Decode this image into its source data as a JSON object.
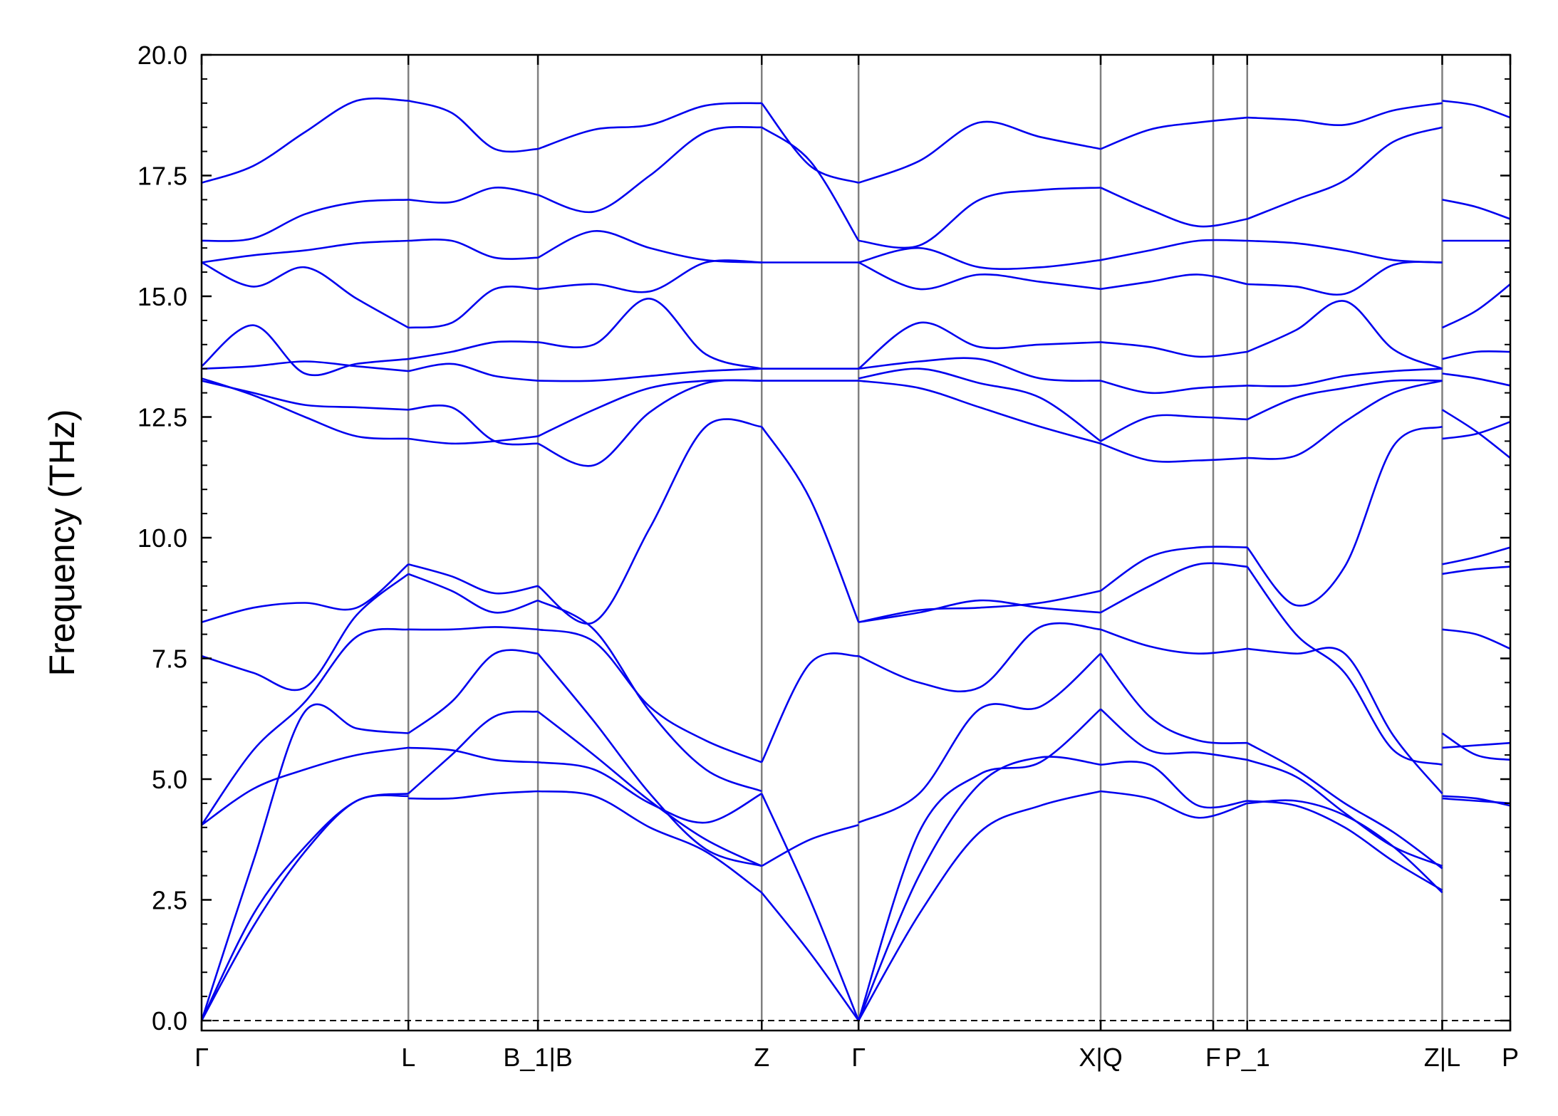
{
  "chart_data": {
    "type": "line",
    "ylabel": "Frequency (THz)",
    "xlabel": "",
    "ylim": [
      0,
      20
    ],
    "y_ticks": [
      "0.0",
      "2.5",
      "5.0",
      "7.5",
      "10.0",
      "12.5",
      "15.0",
      "17.5",
      "20.0"
    ],
    "y_tick_values": [
      0,
      2.5,
      5,
      7.5,
      10,
      12.5,
      15,
      17.5,
      20
    ],
    "q_points": [
      {
        "label": "Γ",
        "x": 0.0
      },
      {
        "label": "L",
        "x": 1.58
      },
      {
        "label": "B_1|B",
        "x": 2.57
      },
      {
        "label": "Z",
        "x": 4.28
      },
      {
        "label": "Γ",
        "x": 5.02
      },
      {
        "label": "X|Q",
        "x": 6.87
      },
      {
        "label": "F",
        "x": 7.73
      },
      {
        "label": "P_1",
        "x": 7.99
      },
      {
        "label": "Z|L",
        "x": 9.48
      },
      {
        "label": "P",
        "x": 10.0
      }
    ],
    "xlim": [
      0,
      10.0
    ],
    "line_color": "#0000ee",
    "vline_color": "#808080",
    "zero_line": {
      "y": 0,
      "style": "dashed"
    },
    "segments": [
      {
        "x_start": 0.0,
        "x_end": 1.58,
        "bands": [
          [
            0,
            1.95,
            3.5,
            4.55,
            4.65
          ],
          [
            0,
            2.2,
            3.6,
            4.55,
            4.7
          ],
          [
            0,
            3.3,
            6.4,
            6.05,
            5.95
          ],
          [
            4.05,
            4.8,
            5.2,
            5.5,
            5.65
          ],
          [
            4.05,
            5.6,
            6.6,
            7.95,
            8.1
          ],
          [
            7.55,
            7.2,
            6.9,
            8.4,
            9.25
          ],
          [
            8.25,
            8.55,
            8.65,
            8.55,
            9.45
          ],
          [
            13.25,
            13.0,
            12.75,
            12.7,
            12.65
          ],
          [
            13.3,
            12.95,
            12.5,
            12.1,
            12.05
          ],
          [
            13.5,
            13.55,
            13.65,
            13.55,
            13.45
          ],
          [
            13.55,
            14.4,
            13.4,
            13.6,
            13.7
          ],
          [
            15.7,
            15.2,
            15.6,
            14.95,
            14.35
          ],
          [
            15.7,
            15.85,
            15.95,
            16.1,
            16.15
          ],
          [
            16.15,
            16.2,
            16.7,
            16.95,
            17.0
          ],
          [
            17.35,
            17.7,
            18.4,
            19.05,
            19.05
          ]
        ]
      },
      {
        "x_start": 1.58,
        "x_end": 2.57,
        "bands": [
          [
            4.6,
            4.6,
            4.7,
            4.75
          ],
          [
            4.7,
            5.5,
            6.3,
            6.4
          ],
          [
            5.95,
            6.6,
            7.6,
            7.6
          ],
          [
            5.65,
            5.6,
            5.4,
            5.35
          ],
          [
            8.1,
            8.1,
            8.15,
            8.1
          ],
          [
            9.25,
            8.9,
            8.45,
            8.7
          ],
          [
            9.45,
            9.2,
            8.85,
            9.0
          ],
          [
            12.65,
            12.7,
            12.0,
            11.95
          ],
          [
            12.05,
            11.95,
            12.0,
            12.1
          ],
          [
            13.45,
            13.6,
            13.35,
            13.25
          ],
          [
            13.7,
            13.85,
            14.05,
            14.05
          ],
          [
            14.35,
            14.45,
            15.15,
            15.15
          ],
          [
            16.15,
            16.15,
            15.8,
            15.8
          ],
          [
            17.0,
            16.95,
            17.25,
            17.1
          ],
          [
            19.05,
            18.8,
            18.05,
            18.05
          ]
        ]
      },
      {
        "x_start": 2.57,
        "x_end": 4.28,
        "bands": [
          [
            4.75,
            4.65,
            4.0,
            3.5,
            2.65
          ],
          [
            6.4,
            5.5,
            4.55,
            3.75,
            3.2
          ],
          [
            7.6,
            6.2,
            4.7,
            3.55,
            3.2
          ],
          [
            5.35,
            5.2,
            4.5,
            4.1,
            4.7
          ],
          [
            8.1,
            7.85,
            6.5,
            5.8,
            5.35
          ],
          [
            8.7,
            8.1,
            6.4,
            5.2,
            4.75
          ],
          [
            9.0,
            8.25,
            10.2,
            12.3,
            12.3
          ],
          [
            11.95,
            11.5,
            12.6,
            13.2,
            13.25
          ],
          [
            12.1,
            12.65,
            13.1,
            13.25,
            13.25
          ],
          [
            13.25,
            13.25,
            13.35,
            13.45,
            13.5
          ],
          [
            14.05,
            14.0,
            14.95,
            13.8,
            13.5
          ],
          [
            15.15,
            15.25,
            15.1,
            15.7,
            15.7
          ],
          [
            15.8,
            16.35,
            16.0,
            15.75,
            15.7
          ],
          [
            17.1,
            16.75,
            17.5,
            18.4,
            18.5
          ],
          [
            18.05,
            18.45,
            18.55,
            18.95,
            19.0
          ]
        ]
      },
      {
        "x_start": 4.28,
        "x_end": 5.02,
        "bands": [
          [
            2.65,
            1.4,
            0
          ],
          [
            3.2,
            3.75,
            4.05
          ],
          [
            4.7,
            2.5,
            0
          ],
          [
            5.35,
            7.4,
            7.55
          ],
          [
            12.3,
            10.8,
            8.25
          ],
          [
            13.25,
            13.25,
            13.25
          ],
          [
            13.5,
            13.5,
            13.5
          ],
          [
            15.7,
            15.7,
            15.7
          ],
          [
            18.5,
            17.8,
            16.15
          ],
          [
            19.0,
            17.7,
            17.35
          ]
        ]
      },
      {
        "x_start": 5.02,
        "x_end": 6.87,
        "bands": [
          [
            0,
            2.2,
            3.9,
            4.45,
            4.75
          ],
          [
            0,
            3.0,
            4.9,
            5.45,
            5.3
          ],
          [
            0,
            3.9,
            5.1,
            5.35,
            6.45
          ],
          [
            4.1,
            4.7,
            6.45,
            6.5,
            7.6
          ],
          [
            7.55,
            7.0,
            6.9,
            8.15,
            8.1
          ],
          [
            8.25,
            8.45,
            8.7,
            8.55,
            8.45
          ],
          [
            8.25,
            8.5,
            8.55,
            8.65,
            8.9
          ],
          [
            13.25,
            13.1,
            12.7,
            12.3,
            11.95
          ],
          [
            13.3,
            13.5,
            13.2,
            12.9,
            12.0
          ],
          [
            13.5,
            13.65,
            13.7,
            13.3,
            13.25
          ],
          [
            13.5,
            14.45,
            13.95,
            14.0,
            14.05
          ],
          [
            15.7,
            15.15,
            15.45,
            15.3,
            15.15
          ],
          [
            15.7,
            16.0,
            15.6,
            15.6,
            15.75
          ],
          [
            16.15,
            16.05,
            17.0,
            17.2,
            17.25
          ],
          [
            17.35,
            17.8,
            18.6,
            18.3,
            18.05
          ]
        ]
      },
      {
        "x_start": 6.87,
        "x_end": 7.99,
        "bands": [
          [
            4.75,
            4.6,
            4.2,
            4.5
          ],
          [
            5.3,
            5.3,
            4.45,
            4.55
          ],
          [
            6.45,
            5.6,
            5.55,
            5.4
          ],
          [
            7.6,
            6.3,
            5.8,
            5.75
          ],
          [
            8.1,
            7.75,
            7.6,
            7.7
          ],
          [
            8.45,
            9.0,
            9.45,
            9.4
          ],
          [
            8.9,
            9.6,
            9.8,
            9.8
          ],
          [
            11.95,
            11.6,
            11.6,
            11.65
          ],
          [
            12.0,
            12.5,
            12.5,
            12.45
          ],
          [
            13.25,
            13.0,
            13.1,
            13.15
          ],
          [
            14.05,
            13.95,
            13.75,
            13.85
          ],
          [
            15.15,
            15.3,
            15.45,
            15.25
          ],
          [
            15.75,
            15.95,
            16.15,
            16.15
          ],
          [
            17.25,
            16.8,
            16.45,
            16.6
          ],
          [
            18.05,
            18.45,
            18.6,
            18.7
          ]
        ]
      },
      {
        "x_start": 7.99,
        "x_end": 9.48,
        "bands": [
          [
            4.5,
            4.55,
            4.25,
            3.6,
            2.65
          ],
          [
            4.55,
            4.45,
            4.0,
            3.3,
            2.7
          ],
          [
            5.4,
            5.05,
            4.3,
            3.6,
            3.2
          ],
          [
            5.75,
            5.2,
            4.5,
            3.9,
            3.15
          ],
          [
            7.7,
            7.6,
            7.6,
            5.9,
            4.7
          ],
          [
            9.4,
            8.0,
            7.2,
            5.6,
            5.3
          ],
          [
            9.8,
            8.6,
            9.4,
            11.9,
            12.3
          ],
          [
            11.65,
            11.7,
            12.4,
            13.0,
            13.25
          ],
          [
            12.45,
            12.9,
            13.1,
            13.25,
            13.25
          ],
          [
            13.15,
            13.15,
            13.35,
            13.45,
            13.5
          ],
          [
            13.85,
            14.3,
            14.9,
            13.9,
            13.5
          ],
          [
            15.25,
            15.2,
            15.05,
            15.65,
            15.7
          ],
          [
            16.15,
            16.1,
            15.95,
            15.75,
            15.7
          ],
          [
            16.6,
            17.0,
            17.4,
            18.2,
            18.5
          ],
          [
            18.7,
            18.65,
            18.55,
            18.85,
            19.0
          ]
        ]
      },
      {
        "x_start": 9.48,
        "x_end": 10.0,
        "bands": [
          [
            4.6,
            4.55,
            4.5
          ],
          [
            4.65,
            4.6,
            4.45
          ],
          [
            5.65,
            5.7,
            5.75
          ],
          [
            5.95,
            5.5,
            5.4
          ],
          [
            8.1,
            8.0,
            7.7
          ],
          [
            9.25,
            9.35,
            9.4
          ],
          [
            9.45,
            9.6,
            9.8
          ],
          [
            12.05,
            12.15,
            12.4
          ],
          [
            12.65,
            12.2,
            11.65
          ],
          [
            13.4,
            13.3,
            13.15
          ],
          [
            13.7,
            13.85,
            13.85
          ],
          [
            14.35,
            14.7,
            15.25
          ],
          [
            16.15,
            16.15,
            16.15
          ],
          [
            17.0,
            16.85,
            16.6
          ],
          [
            19.05,
            18.95,
            18.7
          ]
        ]
      }
    ]
  }
}
